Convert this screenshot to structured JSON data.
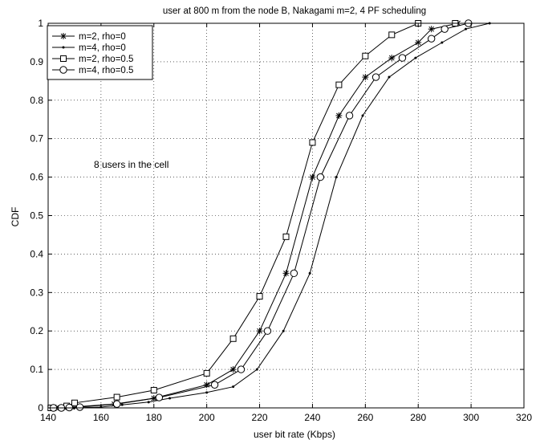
{
  "chart_data": {
    "type": "line",
    "title": "user at 800 m from the node B, Nakagami m=2, 4   PF scheduling",
    "xlabel": "user bit rate (Kbps)",
    "ylabel": "CDF",
    "xlim": [
      140,
      320
    ],
    "ylim": [
      0,
      1
    ],
    "xticks": [
      140,
      160,
      180,
      200,
      220,
      240,
      260,
      280,
      300,
      320
    ],
    "yticks": [
      0,
      0.1,
      0.2,
      0.3,
      0.4,
      0.5,
      0.6,
      0.7,
      0.8,
      0.9,
      1
    ],
    "grid": true,
    "legend_position": "top-left",
    "annotation": "8 users in the cell",
    "series": [
      {
        "name": "m=2, rho=0",
        "marker": "star",
        "x": [
          143,
          146,
          149,
          165,
          180,
          200,
          210,
          220,
          230,
          240,
          250,
          260,
          270,
          280,
          285,
          295
        ],
        "y": [
          0.0,
          0.001,
          0.002,
          0.01,
          0.025,
          0.06,
          0.1,
          0.2,
          0.35,
          0.6,
          0.76,
          0.86,
          0.91,
          0.95,
          0.985,
          1.0
        ]
      },
      {
        "name": "m=4, rho=0",
        "marker": "dot",
        "x": [
          145,
          150,
          160,
          168,
          178,
          186,
          200,
          210,
          219,
          229,
          239,
          249,
          259,
          269,
          279,
          289,
          298,
          307
        ],
        "y": [
          0.0,
          0.0,
          0.002,
          0.008,
          0.015,
          0.025,
          0.04,
          0.055,
          0.1,
          0.2,
          0.35,
          0.6,
          0.76,
          0.86,
          0.91,
          0.95,
          0.985,
          1.0
        ]
      },
      {
        "name": "m=2, rho=0.5",
        "marker": "square",
        "x": [
          141,
          147,
          150,
          166,
          180,
          200,
          210,
          220,
          230,
          240,
          250,
          260,
          270,
          280,
          294
        ],
        "y": [
          0.0,
          0.005,
          0.013,
          0.028,
          0.046,
          0.09,
          0.18,
          0.29,
          0.445,
          0.69,
          0.84,
          0.915,
          0.97,
          1.0,
          1.0
        ]
      },
      {
        "name": "m=4, rho=0.5",
        "marker": "circle",
        "x": [
          142,
          145,
          148,
          152,
          166,
          182,
          203,
          213,
          223,
          233,
          243,
          254,
          264,
          274,
          285,
          290,
          299
        ],
        "y": [
          0.0,
          0.0,
          0.001,
          0.002,
          0.01,
          0.027,
          0.06,
          0.1,
          0.2,
          0.35,
          0.6,
          0.76,
          0.86,
          0.91,
          0.96,
          0.985,
          1.0
        ]
      }
    ]
  }
}
